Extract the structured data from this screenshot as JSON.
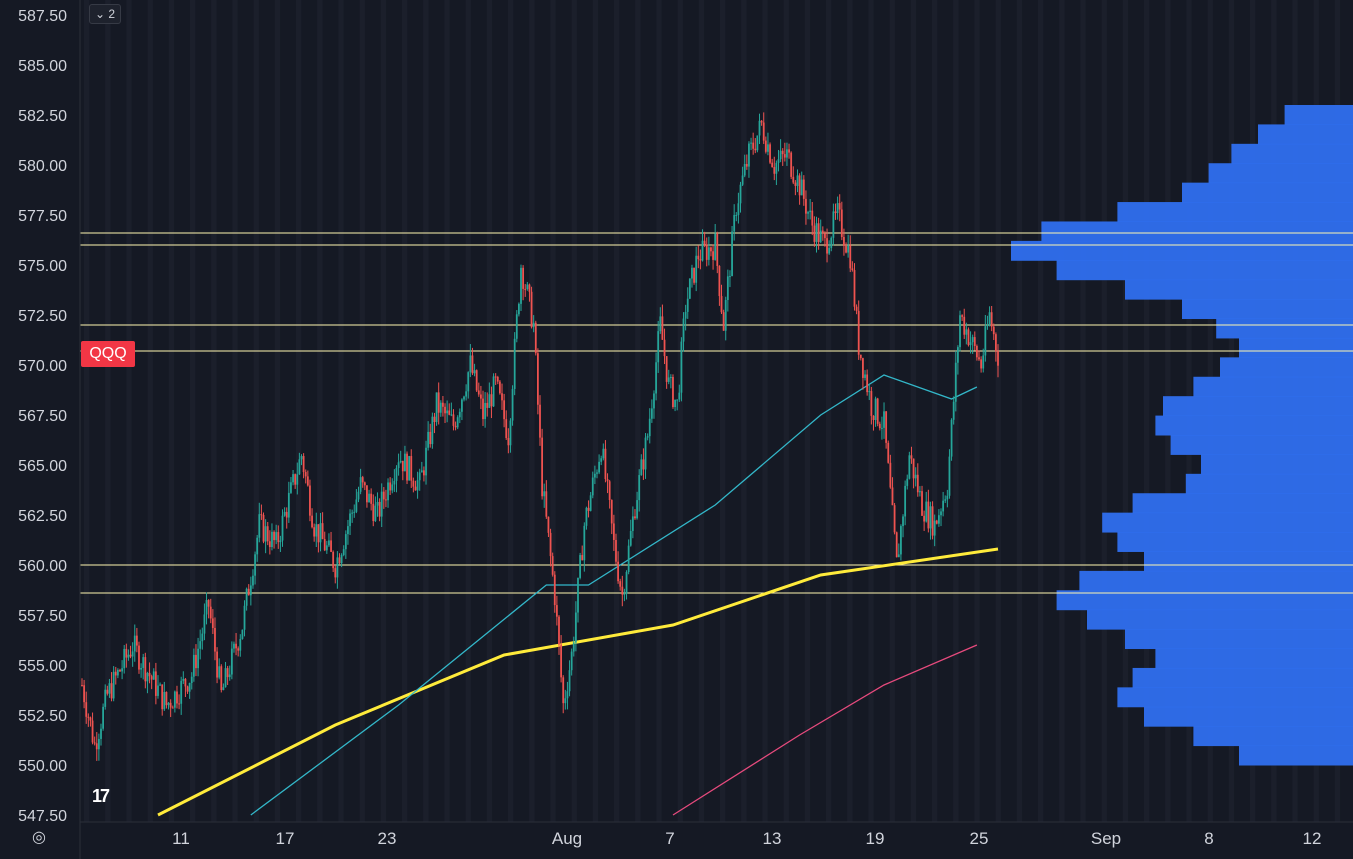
{
  "symbol_badge": "QQQ",
  "collapse_button": {
    "icon": "chevron-down-icon",
    "count": "2"
  },
  "logo_text": "17",
  "settings_icon": "gear-icon",
  "colors": {
    "background": "#151924",
    "stripe": "#1b1f2b",
    "up": "#26a69a",
    "down": "#ef5350",
    "level_line": "#fff6b0",
    "ma_yellow": "#ffeb3b",
    "ma_cyan": "#33b7c9",
    "ma_pink": "#e64a7d",
    "volume_profile": "#2f6fef",
    "badge": "#f23645"
  },
  "chart_data": {
    "type": "candlestick",
    "symbol": "QQQ",
    "y_axis": {
      "range": [
        547.5,
        587.5
      ],
      "ticks": [
        "587.50",
        "585.00",
        "582.50",
        "580.00",
        "577.50",
        "575.00",
        "572.50",
        "570.00",
        "567.50",
        "565.00",
        "562.50",
        "560.00",
        "557.50",
        "555.00",
        "552.50",
        "550.00",
        "547.50"
      ]
    },
    "x_axis": {
      "labels": [
        "11",
        "17",
        "23",
        "Aug",
        "7",
        "13",
        "19",
        "25",
        "Sep",
        "8",
        "12"
      ]
    },
    "horizontal_levels": [
      576.6,
      576.0,
      572.0,
      570.7,
      560.0,
      558.6
    ],
    "key_points": [
      {
        "t": 0,
        "price": 554.0
      },
      {
        "t": 3,
        "price": 551.0
      },
      {
        "t": 6,
        "price": 553.5
      },
      {
        "t": 12,
        "price": 556.0
      },
      {
        "t": 20,
        "price": 553.0
      },
      {
        "t": 26,
        "price": 554.5
      },
      {
        "t": 30,
        "price": 558.0
      },
      {
        "t": 33,
        "price": 553.5
      },
      {
        "t": 38,
        "price": 557.0
      },
      {
        "t": 42,
        "price": 562.0
      },
      {
        "t": 46,
        "price": 561.0
      },
      {
        "t": 52,
        "price": 565.5
      },
      {
        "t": 55,
        "price": 562.0
      },
      {
        "t": 60,
        "price": 560.0
      },
      {
        "t": 66,
        "price": 564.0
      },
      {
        "t": 70,
        "price": 562.5
      },
      {
        "t": 75,
        "price": 565.5
      },
      {
        "t": 80,
        "price": 564.0
      },
      {
        "t": 84,
        "price": 568.0
      },
      {
        "t": 88,
        "price": 567.0
      },
      {
        "t": 92,
        "price": 570.0
      },
      {
        "t": 95,
        "price": 567.5
      },
      {
        "t": 98,
        "price": 569.0
      },
      {
        "t": 101,
        "price": 566.5
      },
      {
        "t": 104,
        "price": 575.0
      },
      {
        "t": 107,
        "price": 572.0
      },
      {
        "t": 109,
        "price": 564.0
      },
      {
        "t": 112,
        "price": 558.5
      },
      {
        "t": 114,
        "price": 553.0
      },
      {
        "t": 116,
        "price": 555.5
      },
      {
        "t": 119,
        "price": 562.0
      },
      {
        "t": 123,
        "price": 566.0
      },
      {
        "t": 126,
        "price": 561.0
      },
      {
        "t": 128,
        "price": 558.5
      },
      {
        "t": 131,
        "price": 563.0
      },
      {
        "t": 134,
        "price": 566.5
      },
      {
        "t": 137,
        "price": 572.0
      },
      {
        "t": 139,
        "price": 569.0
      },
      {
        "t": 141,
        "price": 568.0
      },
      {
        "t": 143,
        "price": 573.0
      },
      {
        "t": 146,
        "price": 575.5
      },
      {
        "t": 150,
        "price": 576.0
      },
      {
        "t": 152,
        "price": 572.0
      },
      {
        "t": 155,
        "price": 578.0
      },
      {
        "t": 158,
        "price": 580.5
      },
      {
        "t": 161,
        "price": 582.0
      },
      {
        "t": 164,
        "price": 580.0
      },
      {
        "t": 167,
        "price": 580.5
      },
      {
        "t": 170,
        "price": 579.0
      },
      {
        "t": 173,
        "price": 577.0
      },
      {
        "t": 176,
        "price": 576.0
      },
      {
        "t": 179,
        "price": 577.5
      },
      {
        "t": 182,
        "price": 575.5
      },
      {
        "t": 184,
        "price": 571.0
      },
      {
        "t": 187,
        "price": 568.0
      },
      {
        "t": 190,
        "price": 567.0
      },
      {
        "t": 193,
        "price": 560.0
      },
      {
        "t": 196,
        "price": 565.5
      },
      {
        "t": 199,
        "price": 563.0
      },
      {
        "t": 202,
        "price": 562.0
      },
      {
        "t": 205,
        "price": 564.0
      },
      {
        "t": 208,
        "price": 572.5
      },
      {
        "t": 211,
        "price": 571.0
      },
      {
        "t": 213,
        "price": 570.0
      },
      {
        "t": 215,
        "price": 572.5
      },
      {
        "t": 217,
        "price": 570.5
      }
    ],
    "moving_averages": [
      {
        "name": "",
        "color": "#ffeb3b",
        "points": [
          {
            "t": 18,
            "v": 547.5
          },
          {
            "t": 60,
            "v": 552.0
          },
          {
            "t": 100,
            "v": 555.5
          },
          {
            "t": 140,
            "v": 557.0
          },
          {
            "t": 175,
            "v": 559.5
          },
          {
            "t": 217,
            "v": 560.8
          }
        ]
      },
      {
        "name": "",
        "color": "#33b7c9",
        "points": [
          {
            "t": 40,
            "v": 547.5
          },
          {
            "t": 75,
            "v": 553.0
          },
          {
            "t": 110,
            "v": 559.0
          },
          {
            "t": 120,
            "v": 559.0
          },
          {
            "t": 150,
            "v": 563.0
          },
          {
            "t": 175,
            "v": 567.5
          },
          {
            "t": 190,
            "v": 569.5
          },
          {
            "t": 206,
            "v": 568.3
          },
          {
            "t": 212,
            "v": 568.9
          }
        ]
      },
      {
        "name": "",
        "color": "#e64a7d",
        "points": [
          {
            "t": 140,
            "v": 547.5
          },
          {
            "t": 170,
            "v": 551.5
          },
          {
            "t": 190,
            "v": 554.0
          },
          {
            "t": 212,
            "v": 556.0
          }
        ]
      }
    ],
    "volume_profile": {
      "price_range": [
        550.0,
        583.0
      ],
      "relative_volume": [
        0.3,
        0.42,
        0.55,
        0.62,
        0.58,
        0.52,
        0.6,
        0.7,
        0.78,
        0.72,
        0.55,
        0.62,
        0.66,
        0.58,
        0.44,
        0.4,
        0.48,
        0.52,
        0.5,
        0.42,
        0.35,
        0.3,
        0.36,
        0.45,
        0.6,
        0.78,
        0.9,
        0.82,
        0.62,
        0.45,
        0.38,
        0.32,
        0.25,
        0.18
      ]
    }
  }
}
